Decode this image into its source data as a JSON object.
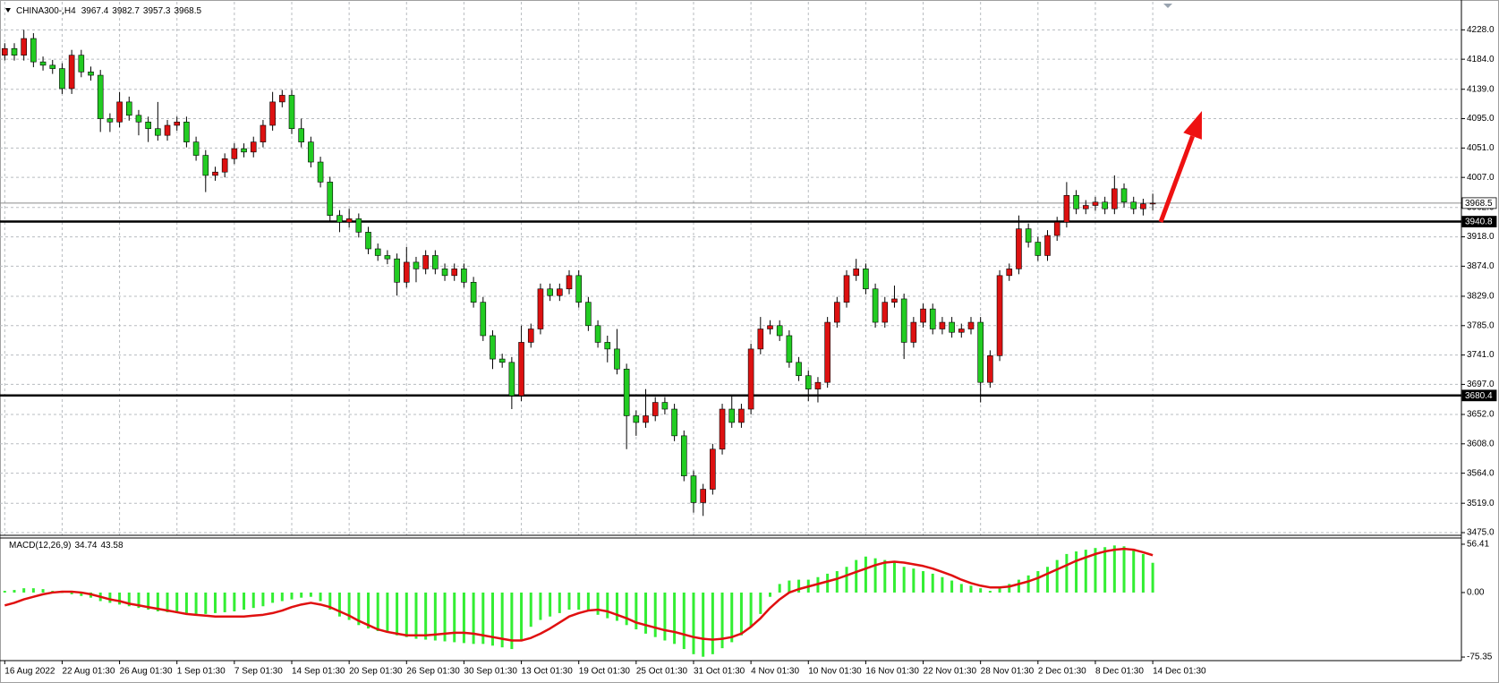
{
  "chart_data": [
    {
      "type": "candlestick",
      "symbol": "CHINA300-,H4",
      "categories": [
        "16 Aug 2022",
        null,
        null,
        null,
        null,
        null,
        "22 Aug 01:30",
        null,
        null,
        null,
        null,
        null,
        "26 Aug 01:30",
        null,
        null,
        null,
        null,
        null,
        "1 Sep 01:30",
        null,
        null,
        null,
        null,
        null,
        "7 Sep 01:30",
        null,
        null,
        null,
        null,
        null,
        "14 Sep 01:30",
        null,
        null,
        null,
        null,
        null,
        "20 Sep 01:30",
        null,
        null,
        null,
        null,
        null,
        "26 Sep 01:30",
        null,
        null,
        null,
        null,
        null,
        "30 Sep 01:30",
        null,
        null,
        null,
        null,
        null,
        "13 Oct 01:30",
        null,
        null,
        null,
        null,
        null,
        "19 Oct 01:30",
        null,
        null,
        null,
        null,
        null,
        "25 Oct 01:30",
        null,
        null,
        null,
        null,
        null,
        "31 Oct 01:30",
        null,
        null,
        null,
        null,
        null,
        "4 Nov 01:30",
        null,
        null,
        null,
        null,
        null,
        "10 Nov 01:30",
        null,
        null,
        null,
        null,
        null,
        "16 Nov 01:30",
        null,
        null,
        null,
        null,
        null,
        "22 Nov 01:30",
        null,
        null,
        null,
        null,
        null,
        "28 Nov 01:30",
        null,
        null,
        null,
        null,
        null,
        "2 Dec 01:30",
        null,
        null,
        null,
        null,
        null,
        "8 Dec 01:30",
        null,
        null,
        null,
        null,
        null,
        "14 Dec 01:30"
      ],
      "open": [
        4190,
        4200,
        4190,
        4215,
        4180,
        4175,
        4170,
        4140,
        4190,
        4165,
        4160,
        4095,
        4090,
        4120,
        4100,
        4090,
        4080,
        4070,
        4085,
        4090,
        4060,
        4040,
        4010,
        4015,
        4035,
        4050,
        4045,
        4060,
        4085,
        4120,
        4130,
        4080,
        4060,
        4030,
        4000,
        3950,
        3940,
        3945,
        3925,
        3900,
        3890,
        3885,
        3850,
        3880,
        3870,
        3890,
        3870,
        3860,
        3870,
        3850,
        3820,
        3770,
        3735,
        3730,
        3680,
        3760,
        3780,
        3840,
        3830,
        3840,
        3860,
        3820,
        3785,
        3760,
        3750,
        3720,
        3650,
        3640,
        3650,
        3670,
        3660,
        3620,
        3560,
        3520,
        3540,
        3600,
        3660,
        3640,
        3660,
        3750,
        3780,
        3785,
        3770,
        3730,
        3710,
        3690,
        3700,
        3790,
        3820,
        3860,
        3870,
        3840,
        3790,
        3820,
        3825,
        3760,
        3790,
        3810,
        3780,
        3790,
        3775,
        3780,
        3790,
        3700,
        3740,
        3860,
        3870,
        3930,
        3910,
        3890,
        3920,
        3940,
        3980,
        3960,
        3965,
        3970,
        3960,
        3990,
        3970,
        3960,
        3967.4
      ],
      "high": [
        4208,
        4208,
        4228,
        4223,
        4188,
        4183,
        4178,
        4198,
        4198,
        4173,
        4168,
        4103,
        4135,
        4128,
        4108,
        4098,
        4120,
        4093,
        4098,
        4098,
        4068,
        4048,
        4023,
        4043,
        4058,
        4058,
        4068,
        4093,
        4135,
        4138,
        4138,
        4095,
        4068,
        4038,
        4008,
        3958,
        3960,
        3953,
        3933,
        3908,
        3898,
        3893,
        3903,
        3888,
        3898,
        3898,
        3878,
        3878,
        3878,
        3858,
        3828,
        3778,
        3743,
        3738,
        3785,
        3788,
        3848,
        3848,
        3848,
        3868,
        3868,
        3828,
        3793,
        3770,
        3780,
        3728,
        3658,
        3690,
        3678,
        3678,
        3668,
        3628,
        3568,
        3548,
        3608,
        3668,
        3680,
        3668,
        3758,
        3798,
        3793,
        3793,
        3778,
        3738,
        3718,
        3708,
        3798,
        3828,
        3868,
        3885,
        3878,
        3848,
        3828,
        3845,
        3833,
        3798,
        3818,
        3818,
        3798,
        3798,
        3788,
        3798,
        3798,
        3748,
        3868,
        3878,
        3950,
        3938,
        3918,
        3928,
        3948,
        4000,
        3988,
        3973,
        3978,
        3978,
        4010,
        3998,
        3978,
        3975,
        3982.7
      ],
      "low": [
        4182,
        4182,
        4182,
        4172,
        4167,
        4162,
        4132,
        4132,
        4157,
        4152,
        4075,
        4075,
        4082,
        4092,
        4070,
        4060,
        4062,
        4062,
        4077,
        4052,
        4032,
        3985,
        4002,
        4007,
        4027,
        4037,
        4037,
        4052,
        4077,
        4112,
        4072,
        4052,
        4022,
        3992,
        3942,
        3925,
        3932,
        3917,
        3892,
        3882,
        3877,
        3830,
        3842,
        3850,
        3862,
        3862,
        3852,
        3852,
        3842,
        3812,
        3762,
        3720,
        3722,
        3660,
        3672,
        3752,
        3772,
        3822,
        3822,
        3832,
        3812,
        3777,
        3752,
        3730,
        3712,
        3600,
        3620,
        3632,
        3642,
        3652,
        3612,
        3552,
        3505,
        3500,
        3532,
        3592,
        3632,
        3632,
        3652,
        3742,
        3772,
        3762,
        3722,
        3702,
        3672,
        3670,
        3692,
        3782,
        3812,
        3852,
        3832,
        3782,
        3782,
        3812,
        3735,
        3752,
        3782,
        3772,
        3772,
        3767,
        3767,
        3772,
        3670,
        3692,
        3732,
        3852,
        3862,
        3902,
        3882,
        3882,
        3912,
        3932,
        3952,
        3952,
        3957,
        3952,
        3952,
        3962,
        3952,
        3950,
        3957.3
      ],
      "close": [
        4200,
        4190,
        4215,
        4180,
        4175,
        4170,
        4140,
        4190,
        4165,
        4160,
        4095,
        4090,
        4120,
        4100,
        4090,
        4080,
        4070,
        4085,
        4090,
        4060,
        4040,
        4010,
        4015,
        4035,
        4050,
        4045,
        4060,
        4085,
        4120,
        4130,
        4080,
        4060,
        4030,
        4000,
        3950,
        3940,
        3945,
        3925,
        3900,
        3890,
        3885,
        3850,
        3880,
        3870,
        3890,
        3870,
        3860,
        3870,
        3850,
        3820,
        3770,
        3735,
        3730,
        3680,
        3760,
        3780,
        3840,
        3830,
        3840,
        3860,
        3820,
        3785,
        3760,
        3750,
        3720,
        3650,
        3640,
        3650,
        3670,
        3660,
        3620,
        3560,
        3520,
        3540,
        3600,
        3660,
        3640,
        3660,
        3750,
        3780,
        3785,
        3770,
        3730,
        3710,
        3690,
        3700,
        3790,
        3820,
        3860,
        3870,
        3840,
        3790,
        3820,
        3825,
        3760,
        3790,
        3810,
        3780,
        3790,
        3775,
        3780,
        3790,
        3700,
        3740,
        3860,
        3870,
        3930,
        3910,
        3890,
        3920,
        3940,
        3980,
        3960,
        3965,
        3970,
        3960,
        3990,
        3970,
        3960,
        3967.4,
        3968.5
      ],
      "up_color": "#dd1111",
      "down_color": "#22cc22",
      "wick_color": "#000000",
      "levels": [
        3940.8,
        3680.4
      ],
      "ylim": [
        3471,
        4270
      ],
      "yticks": [
        {
          "value": 4228,
          "label": "4228.0"
        },
        {
          "value": 4184,
          "label": "4184.0"
        },
        {
          "value": 4139,
          "label": "4139.0"
        },
        {
          "value": 4095,
          "label": "4095.0"
        },
        {
          "value": 4051,
          "label": "4051.0"
        },
        {
          "value": 4007,
          "label": "4007.0"
        },
        {
          "value": 3962,
          "label": "3962.0"
        },
        {
          "value": 3918,
          "label": "3918.0"
        },
        {
          "value": 3874,
          "label": "3874.0"
        },
        {
          "value": 3829,
          "label": "3829.0"
        },
        {
          "value": 3785,
          "label": "3785.0"
        },
        {
          "value": 3741,
          "label": "3741.0"
        },
        {
          "value": 3697,
          "label": "3697.0"
        },
        {
          "value": 3652,
          "label": "3652.0"
        },
        {
          "value": 3608,
          "label": "3608.0"
        },
        {
          "value": 3564,
          "label": "3564.0"
        },
        {
          "value": 3519,
          "label": "3519.0"
        },
        {
          "value": 3475,
          "label": "3475.0"
        }
      ],
      "grid": true
    },
    {
      "type": "macd",
      "label": "MACD(12,26,9)",
      "histogram": {
        "color": "#33ee33",
        "values": [
          2,
          3,
          5,
          5,
          4,
          2,
          0,
          -2,
          -4,
          -6,
          -10,
          -12,
          -14,
          -16,
          -18,
          -20,
          -22,
          -23,
          -24,
          -25,
          -25,
          -25,
          -24,
          -23,
          -22,
          -20,
          -18,
          -16,
          -12,
          -10,
          -8,
          -6,
          -5,
          -10,
          -20,
          -28,
          -32,
          -38,
          -42,
          -45,
          -47,
          -50,
          -52,
          -54,
          -55,
          -56,
          -57,
          -58,
          -59,
          -60,
          -60,
          -62,
          -64,
          -66,
          -55,
          -40,
          -32,
          -28,
          -24,
          -20,
          -20,
          -22,
          -26,
          -30,
          -33,
          -38,
          -43,
          -48,
          -52,
          -56,
          -60,
          -66,
          -72,
          -75,
          -72,
          -65,
          -58,
          -50,
          -40,
          -25,
          -5,
          10,
          14,
          15,
          15,
          18,
          22,
          25,
          30,
          38,
          42,
          40,
          38,
          35,
          30,
          28,
          25,
          22,
          18,
          14,
          10,
          8,
          5,
          2,
          5,
          10,
          15,
          20,
          25,
          30,
          38,
          45,
          48,
          50,
          52,
          53,
          55,
          54,
          50,
          45,
          34.74
        ]
      },
      "signal": {
        "color": "#e01010",
        "values": [
          -15,
          -12,
          -8,
          -5,
          -2,
          0,
          1,
          1,
          0,
          -2,
          -5,
          -8,
          -10,
          -13,
          -15,
          -17,
          -19,
          -21,
          -23,
          -25,
          -26,
          -27,
          -28,
          -28,
          -28,
          -28,
          -27,
          -26,
          -24,
          -21,
          -17,
          -14,
          -12,
          -14,
          -17,
          -22,
          -27,
          -33,
          -38,
          -43,
          -46,
          -48,
          -50,
          -50,
          -50,
          -49,
          -48,
          -47,
          -47,
          -48,
          -50,
          -52,
          -54,
          -56,
          -56,
          -53,
          -48,
          -42,
          -35,
          -28,
          -24,
          -21,
          -20,
          -22,
          -26,
          -30,
          -35,
          -38,
          -41,
          -44,
          -46,
          -49,
          -52,
          -54,
          -55,
          -54,
          -52,
          -48,
          -40,
          -30,
          -18,
          -8,
          0,
          4,
          7,
          10,
          13,
          16,
          20,
          24,
          28,
          32,
          35,
          36,
          35,
          33,
          31,
          28,
          24,
          20,
          15,
          11,
          8,
          6,
          6,
          7,
          10,
          13,
          17,
          22,
          27,
          32,
          37,
          41,
          45,
          48,
          50,
          51,
          50,
          47,
          43.58
        ]
      },
      "ylim": [
        -79.5,
        63.7
      ],
      "yticks": [
        56.41,
        {
          "value": 0,
          "label": "0.00"
        },
        -75.35
      ]
    }
  ]
}
